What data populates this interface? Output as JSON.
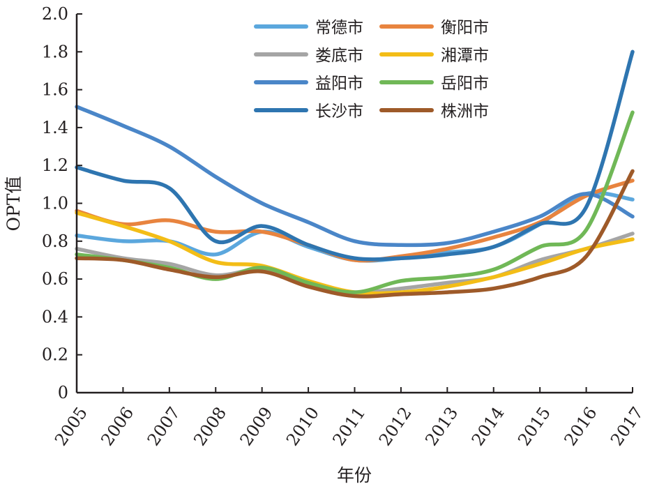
{
  "chart_data": {
    "type": "line",
    "title": "",
    "xlabel": "年份",
    "ylabel": "OPT值",
    "ylim": [
      0,
      2.0
    ],
    "yticks": [
      "0",
      "0.2",
      "0.4",
      "0.6",
      "0.8",
      "1.0",
      "1.2",
      "1.4",
      "1.6",
      "1.8",
      "2.0"
    ],
    "x": [
      "2005",
      "2006",
      "2007",
      "2008",
      "2009",
      "2010",
      "2011",
      "2012",
      "2013",
      "2014",
      "2015",
      "2016",
      "2017"
    ],
    "legend_position": "top-center",
    "grid": false,
    "series": [
      {
        "name": "常德市",
        "color": "#5ba7dd",
        "values": [
          0.83,
          0.8,
          0.8,
          0.73,
          0.85,
          0.77,
          0.7,
          0.71,
          0.74,
          0.77,
          0.89,
          1.05,
          1.02
        ]
      },
      {
        "name": "衡阳市",
        "color": "#e8843f",
        "values": [
          0.96,
          0.89,
          0.91,
          0.85,
          0.85,
          0.78,
          0.7,
          0.72,
          0.76,
          0.82,
          0.9,
          1.04,
          1.12
        ]
      },
      {
        "name": "娄底市",
        "color": "#a5a5a5",
        "values": [
          0.76,
          0.71,
          0.68,
          0.62,
          0.65,
          0.58,
          0.53,
          0.55,
          0.58,
          0.61,
          0.7,
          0.76,
          0.84
        ]
      },
      {
        "name": "湘潭市",
        "color": "#f3bd17",
        "values": [
          0.95,
          0.88,
          0.8,
          0.69,
          0.67,
          0.59,
          0.53,
          0.53,
          0.56,
          0.61,
          0.68,
          0.76,
          0.81
        ]
      },
      {
        "name": "益阳市",
        "color": "#4a86c8",
        "values": [
          1.51,
          1.41,
          1.3,
          1.14,
          1.0,
          0.9,
          0.8,
          0.78,
          0.79,
          0.85,
          0.93,
          1.05,
          0.93
        ]
      },
      {
        "name": "岳阳市",
        "color": "#70b857",
        "values": [
          0.73,
          0.7,
          0.66,
          0.6,
          0.66,
          0.58,
          0.53,
          0.59,
          0.61,
          0.65,
          0.77,
          0.86,
          1.48
        ]
      },
      {
        "name": "长沙市",
        "color": "#2e75b0",
        "values": [
          1.19,
          1.12,
          1.08,
          0.8,
          0.88,
          0.78,
          0.71,
          0.71,
          0.73,
          0.77,
          0.89,
          0.98,
          1.8
        ]
      },
      {
        "name": "株洲市",
        "color": "#9e5a29",
        "values": [
          0.71,
          0.7,
          0.65,
          0.61,
          0.64,
          0.56,
          0.51,
          0.52,
          0.53,
          0.55,
          0.61,
          0.72,
          1.17
        ]
      }
    ]
  }
}
